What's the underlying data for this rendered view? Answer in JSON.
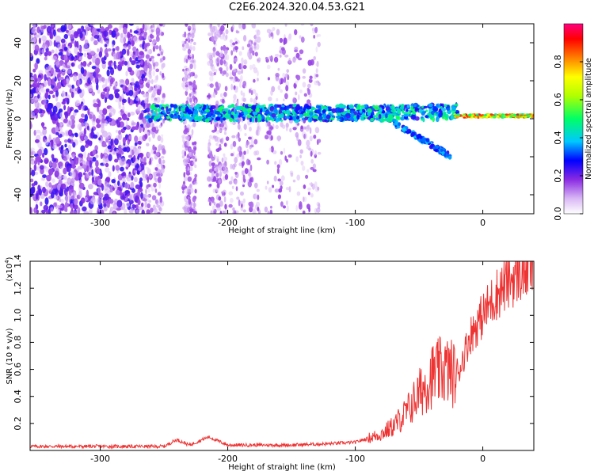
{
  "title": "C2E6.2024.320.04.53.G21",
  "chart_data": [
    {
      "type": "heatmap",
      "xlabel": "Height of straight line (km)",
      "ylabel": "Frequency (Hz)",
      "xlim": [
        -355,
        40
      ],
      "ylim": [
        -50,
        50
      ],
      "xticks": [
        "-300",
        "-200",
        "-100",
        "0"
      ],
      "yticks": [
        "-40",
        "-20",
        "0",
        "20",
        "40"
      ],
      "colorbar": {
        "label": "Normalized spectral amplitude",
        "range": [
          0,
          1
        ],
        "ticks": [
          "0.0",
          "0.2",
          "0.4",
          "0.6",
          "0.8"
        ],
        "colors": [
          "#ffffff",
          "#cfa8f0",
          "#8a2be2",
          "#0000ff",
          "#00c8ff",
          "#00ff66",
          "#b0ff00",
          "#ffff00",
          "#ff8000",
          "#ff0000",
          "#ff0080"
        ]
      },
      "features": [
        {
          "x": [
            -355,
            -265
          ],
          "f": [
            -50,
            50
          ],
          "amplitude": 0.15
        },
        {
          "x": [
            -265,
            -20
          ],
          "f": [
            -2,
            10
          ],
          "amplitude": 0.3
        },
        {
          "x": [
            -20,
            40
          ],
          "f": [
            0,
            3
          ],
          "amplitude": 0.85
        }
      ]
    },
    {
      "type": "line",
      "xlabel": "Height of straight line (km)",
      "ylabel": "SNR (10 * v/v)",
      "multiplier": "(x10",
      "multiplier_exp": "4",
      "xlim": [
        -355,
        40
      ],
      "ylim": [
        0,
        1.4
      ],
      "xticks": [
        "-300",
        "-200",
        "-100",
        "0"
      ],
      "yticks": [
        "0.2",
        "0.4",
        "0.6",
        "0.8",
        "1.0",
        "1.2",
        "1.4"
      ],
      "series": [
        {
          "color": "#ee3333",
          "x": [
            -355,
            -300,
            -250,
            -240,
            -230,
            -215,
            -200,
            -150,
            -120,
            -100,
            -80,
            -70,
            -60,
            -50,
            -40,
            -30,
            -20,
            -10,
            0,
            10,
            20,
            30,
            40
          ],
          "y": [
            0.03,
            0.03,
            0.03,
            0.08,
            0.04,
            0.1,
            0.04,
            0.04,
            0.05,
            0.06,
            0.12,
            0.18,
            0.28,
            0.42,
            0.55,
            0.6,
            0.55,
            0.85,
            1.0,
            1.15,
            1.25,
            1.32,
            1.36
          ]
        }
      ]
    }
  ]
}
